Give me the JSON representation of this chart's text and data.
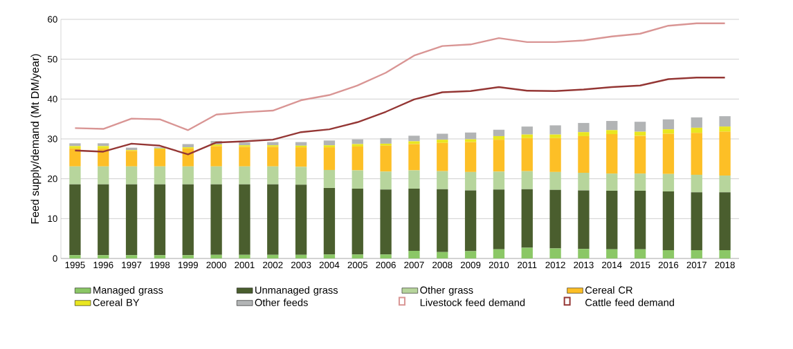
{
  "chart_data": {
    "type": "bar",
    "stacked": true,
    "ylabel": "Feed supply/demand (Mt DM/year)",
    "ylim": [
      0,
      60
    ],
    "yticks": [
      0,
      10,
      20,
      30,
      40,
      50,
      60
    ],
    "grid": "y",
    "legend": "bottom",
    "categories": [
      "1995",
      "1996",
      "1997",
      "1998",
      "1999",
      "2000",
      "2001",
      "2002",
      "2003",
      "2004",
      "2005",
      "2006",
      "2007",
      "2008",
      "2009",
      "2010",
      "2011",
      "2012",
      "2013",
      "2014",
      "2015",
      "2016",
      "2017",
      "2018"
    ],
    "series": [
      {
        "name": "Managed grass",
        "color": "#8bc766",
        "values": [
          0.8,
          0.8,
          0.8,
          0.8,
          0.8,
          0.9,
          0.9,
          0.9,
          0.9,
          1.0,
          1.0,
          1.0,
          1.9,
          1.6,
          1.8,
          2.3,
          2.7,
          2.5,
          2.4,
          2.3,
          2.3,
          2.1,
          2.1,
          2.1
        ]
      },
      {
        "name": "Unmanaged grass",
        "color": "#4a5e2e",
        "values": [
          17.8,
          17.8,
          17.8,
          17.8,
          17.8,
          17.7,
          17.7,
          17.7,
          17.6,
          16.7,
          16.5,
          16.3,
          15.6,
          15.8,
          15.3,
          15.0,
          14.7,
          14.7,
          14.7,
          14.7,
          14.7,
          14.7,
          14.5,
          14.5
        ]
      },
      {
        "name": "Other grass",
        "color": "#b7d59c",
        "values": [
          4.5,
          4.5,
          4.5,
          4.5,
          4.5,
          4.5,
          4.5,
          4.5,
          4.5,
          4.5,
          4.6,
          4.5,
          4.6,
          4.5,
          4.6,
          4.5,
          4.5,
          4.5,
          4.4,
          4.3,
          4.3,
          4.4,
          4.4,
          4.2
        ]
      },
      {
        "name": "Cereal CR",
        "color": "#fdbf26",
        "values": [
          4.5,
          4.5,
          3.9,
          4.3,
          4.5,
          5.1,
          4.9,
          4.9,
          4.9,
          5.7,
          6.0,
          6.5,
          6.6,
          7.1,
          7.5,
          8.0,
          8.3,
          8.5,
          9.2,
          9.9,
          9.5,
          10.1,
          10.5,
          11.0
        ]
      },
      {
        "name": "Cereal BY",
        "color": "#e9e620",
        "values": [
          0.6,
          0.6,
          0.2,
          0.2,
          0.3,
          0.4,
          0.4,
          0.4,
          0.4,
          0.5,
          0.6,
          0.5,
          0.7,
          0.8,
          0.7,
          0.9,
          0.9,
          0.9,
          1.0,
          1.0,
          1.0,
          1.1,
          1.3,
          1.3
        ]
      },
      {
        "name": "Other feeds",
        "color": "#b2b4b5",
        "values": [
          0.7,
          0.7,
          0.6,
          0.3,
          0.8,
          0.9,
          0.7,
          0.8,
          0.9,
          1.2,
          1.2,
          1.4,
          1.4,
          1.5,
          1.7,
          1.6,
          2.0,
          2.3,
          2.3,
          2.3,
          2.5,
          2.5,
          2.6,
          2.6
        ]
      },
      {
        "name": "Livestock feed demand",
        "type": "line",
        "color": "#d99594",
        "values": [
          32.7,
          32.5,
          35.1,
          34.9,
          32.2,
          36.1,
          36.7,
          37.1,
          39.7,
          41.0,
          43.4,
          46.6,
          50.9,
          53.3,
          53.7,
          55.3,
          54.3,
          54.3,
          54.7,
          55.7,
          56.4,
          58.4,
          59.0,
          59.0
        ]
      },
      {
        "name": "Cattle feed demand",
        "type": "line",
        "color": "#943634",
        "values": [
          27.1,
          26.8,
          28.8,
          28.3,
          26.1,
          29.1,
          29.4,
          29.8,
          31.7,
          32.4,
          34.2,
          36.8,
          39.9,
          41.7,
          42.0,
          43.0,
          42.1,
          42.0,
          42.4,
          43.0,
          43.4,
          45.0,
          45.4,
          45.4
        ]
      }
    ]
  }
}
